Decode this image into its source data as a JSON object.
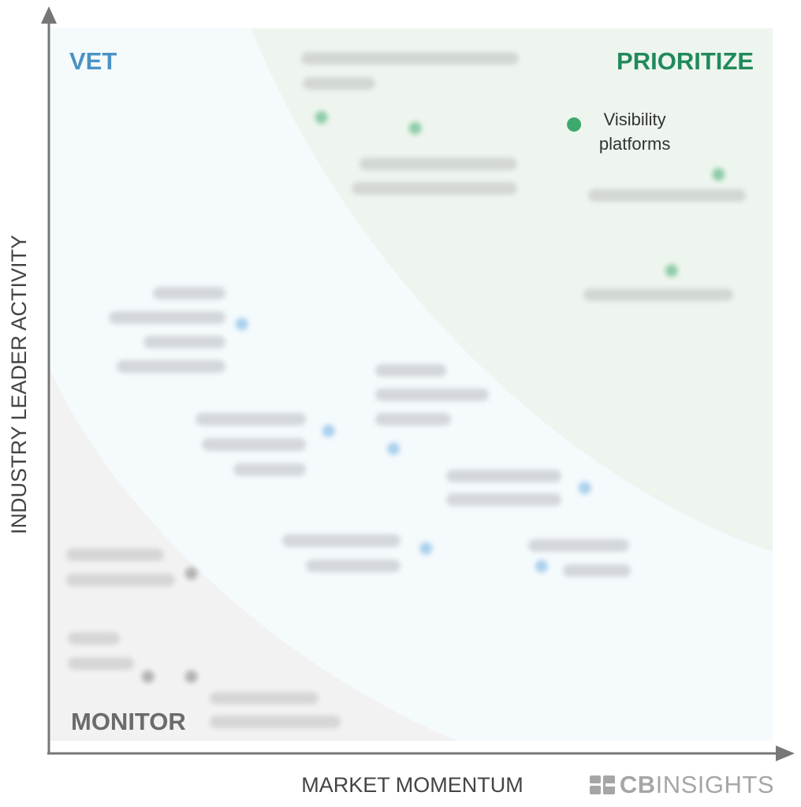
{
  "chart_data": {
    "type": "scatter",
    "title": "",
    "xlabel": "MARKET MOMENTUM",
    "ylabel": "INDUSTRY LEADER ACTIVITY",
    "xlim": [
      0,
      100
    ],
    "ylim": [
      0,
      100
    ],
    "grid": false,
    "quadrants": {
      "vet": "VET",
      "prioritize": "PRIORITIZE",
      "monitor": "MONITOR"
    },
    "colors": {
      "prioritize": "#3daa6b",
      "vet": "#6aaee0",
      "monitor": "#7f7f7f",
      "vet_title": "#4a92c4",
      "prioritize_title": "#218a5a",
      "monitor_title": "#6b6b6b"
    },
    "points": [
      {
        "label": "Visibility platforms",
        "x": 72.5,
        "y": 86.5,
        "group": "prioritize",
        "legible": true
      },
      {
        "label": "",
        "x": 37.5,
        "y": 87.5,
        "group": "prioritize",
        "legible": false
      },
      {
        "label": "",
        "x": 50.5,
        "y": 86.0,
        "group": "prioritize",
        "legible": false
      },
      {
        "label": "",
        "x": 92.5,
        "y": 79.5,
        "group": "prioritize",
        "legible": false
      },
      {
        "label": "",
        "x": 86.0,
        "y": 66.0,
        "group": "prioritize",
        "legible": false
      },
      {
        "label": "",
        "x": 26.5,
        "y": 58.5,
        "group": "vet",
        "legible": false
      },
      {
        "label": "",
        "x": 38.5,
        "y": 43.5,
        "group": "vet",
        "legible": false
      },
      {
        "label": "",
        "x": 47.5,
        "y": 41.0,
        "group": "vet",
        "legible": false
      },
      {
        "label": "",
        "x": 74.0,
        "y": 35.5,
        "group": "vet",
        "legible": false
      },
      {
        "label": "",
        "x": 52.0,
        "y": 27.0,
        "group": "vet",
        "legible": false
      },
      {
        "label": "",
        "x": 68.0,
        "y": 24.5,
        "group": "vet",
        "legible": false
      },
      {
        "label": "",
        "x": 19.5,
        "y": 23.5,
        "group": "monitor",
        "legible": false
      },
      {
        "label": "",
        "x": 13.5,
        "y": 9.0,
        "group": "monitor",
        "legible": false
      },
      {
        "label": "",
        "x": 19.5,
        "y": 9.0,
        "group": "monitor",
        "legible": false
      }
    ]
  },
  "brand": {
    "name_bold": "CB",
    "name_light": "INSIGHTS",
    "icon": "cb-logo-icon"
  }
}
